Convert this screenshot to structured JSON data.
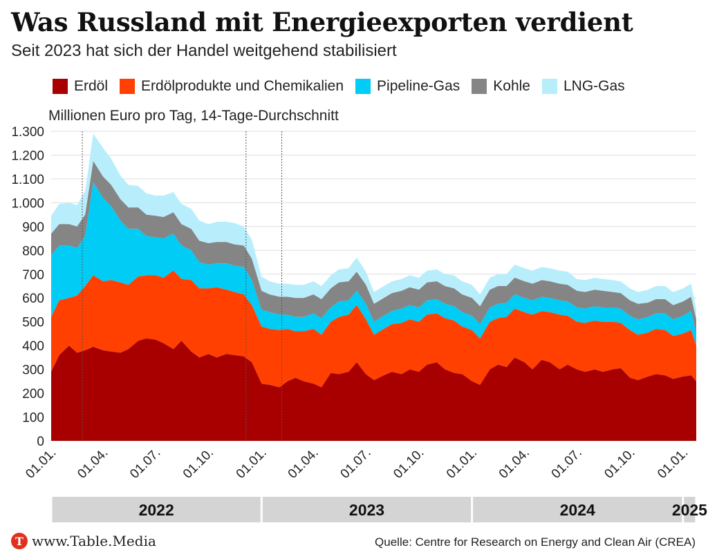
{
  "title": "Was Russland mit Energieexporten verdient",
  "subtitle": "Seit 2023 hat sich der Handel weitgehend stabilisiert",
  "unit_label": "Millionen Euro pro Tag, 14-Tage-Durchschnitt",
  "brand": "www.Table.Media",
  "brand_logo_letter": "T",
  "source": "Quelle: Centre for Research on Energy and Clean Air (CREA)",
  "colors": {
    "erdoel": "#a80000",
    "produkte": "#ff4000",
    "pipeline": "#00ccf5",
    "kohle": "#858585",
    "lng": "#b8eefc",
    "year_band": "#d4d4d4",
    "grid": "#dddddd"
  },
  "chart_data": {
    "type": "area",
    "stacked": true,
    "ylim": [
      0,
      1300
    ],
    "yticks": [
      0,
      100,
      200,
      300,
      400,
      500,
      600,
      700,
      800,
      900,
      1000,
      1100,
      1200,
      1300
    ],
    "ytick_labels": [
      "0",
      "100",
      "200",
      "300",
      "400",
      "500",
      "600",
      "700",
      "800",
      "900",
      "1.000",
      "1.100",
      "1.200",
      "1.300"
    ],
    "xlim": [
      "2022-01-01",
      "2025-01-24"
    ],
    "xticks": [
      "2022-01-01",
      "2022-04-01",
      "2022-07-01",
      "2022-10-01",
      "2023-01-01",
      "2023-04-01",
      "2023-07-01",
      "2023-10-01",
      "2024-01-01",
      "2024-04-01",
      "2024-07-01",
      "2024-10-01",
      "2025-01-01"
    ],
    "xtick_labels": [
      "01.01.",
      "01.04.",
      "01.07.",
      "01.10.",
      "01.01.",
      "01.04.",
      "01.07.",
      "01.10.",
      "01.01.",
      "01.04.",
      "01.07.",
      "01.10.",
      "01.01."
    ],
    "years": [
      {
        "label": "2022",
        "start": "2022-01-01",
        "end": "2022-12-31"
      },
      {
        "label": "2023",
        "start": "2023-01-01",
        "end": "2023-12-31"
      },
      {
        "label": "2024",
        "start": "2024-01-01",
        "end": "2024-12-31"
      },
      {
        "label": "2025",
        "start": "2025-01-01",
        "end": "2025-01-24"
      }
    ],
    "vlines": [
      "2022-02-24",
      "2022-12-05",
      "2023-02-05"
    ],
    "x": [
      "2022-01-01",
      "2022-01-15",
      "2022-02-01",
      "2022-02-15",
      "2022-03-01",
      "2022-03-15",
      "2022-04-01",
      "2022-04-15",
      "2022-05-01",
      "2022-05-15",
      "2022-06-01",
      "2022-06-15",
      "2022-07-01",
      "2022-07-15",
      "2022-08-01",
      "2022-08-15",
      "2022-09-01",
      "2022-09-15",
      "2022-10-01",
      "2022-10-15",
      "2022-11-01",
      "2022-11-15",
      "2022-12-01",
      "2022-12-15",
      "2023-01-01",
      "2023-01-15",
      "2023-02-01",
      "2023-02-15",
      "2023-03-01",
      "2023-03-15",
      "2023-04-01",
      "2023-04-15",
      "2023-05-01",
      "2023-05-15",
      "2023-06-01",
      "2023-06-15",
      "2023-07-01",
      "2023-07-15",
      "2023-08-01",
      "2023-08-15",
      "2023-09-01",
      "2023-09-15",
      "2023-10-01",
      "2023-10-15",
      "2023-11-01",
      "2023-11-15",
      "2023-12-01",
      "2023-12-15",
      "2024-01-01",
      "2024-01-15",
      "2024-02-01",
      "2024-02-15",
      "2024-03-01",
      "2024-03-15",
      "2024-04-01",
      "2024-04-15",
      "2024-05-01",
      "2024-05-15",
      "2024-06-01",
      "2024-06-15",
      "2024-07-01",
      "2024-07-15",
      "2024-08-01",
      "2024-08-15",
      "2024-09-01",
      "2024-09-15",
      "2024-10-01",
      "2024-10-15",
      "2024-11-01",
      "2024-11-15",
      "2024-12-01",
      "2024-12-15",
      "2025-01-01",
      "2025-01-15",
      "2025-01-24"
    ],
    "series": [
      {
        "name": "Erdöl",
        "color_key": "erdoel",
        "values": [
          290,
          360,
          400,
          370,
          380,
          395,
          380,
          375,
          370,
          385,
          420,
          430,
          425,
          410,
          385,
          420,
          375,
          350,
          365,
          350,
          365,
          360,
          355,
          330,
          240,
          235,
          225,
          250,
          265,
          250,
          240,
          225,
          285,
          280,
          290,
          330,
          280,
          255,
          275,
          290,
          280,
          300,
          290,
          320,
          330,
          300,
          285,
          280,
          250,
          235,
          300,
          320,
          310,
          350,
          330,
          300,
          340,
          330,
          300,
          320,
          300,
          290,
          300,
          290,
          300,
          305,
          265,
          255,
          270,
          280,
          275,
          260,
          270,
          275,
          250
        ]
      },
      {
        "name": "Erdölprodukte und Chemikalien",
        "color_key": "produkte",
        "values": [
          230,
          230,
          200,
          240,
          270,
          300,
          290,
          300,
          295,
          270,
          270,
          265,
          270,
          275,
          330,
          260,
          300,
          290,
          275,
          295,
          270,
          265,
          260,
          240,
          240,
          235,
          240,
          220,
          195,
          210,
          230,
          220,
          215,
          240,
          240,
          240,
          230,
          190,
          195,
          200,
          215,
          210,
          210,
          210,
          205,
          215,
          220,
          200,
          215,
          195,
          200,
          195,
          210,
          205,
          210,
          230,
          205,
          210,
          230,
          205,
          200,
          205,
          205,
          210,
          200,
          190,
          200,
          190,
          185,
          190,
          190,
          180,
          180,
          190,
          150
        ]
      },
      {
        "name": "Pipeline-Gas",
        "color_key": "pipeline",
        "values": [
          260,
          230,
          220,
          200,
          210,
          390,
          350,
          310,
          260,
          235,
          200,
          165,
          160,
          165,
          155,
          140,
          125,
          110,
          100,
          100,
          110,
          110,
          115,
          105,
          70,
          70,
          65,
          60,
          60,
          60,
          65,
          70,
          60,
          65,
          60,
          60,
          65,
          55,
          55,
          55,
          60,
          60,
          60,
          60,
          60,
          60,
          60,
          60,
          60,
          60,
          60,
          60,
          60,
          60,
          60,
          60,
          60,
          60,
          60,
          60,
          60,
          60,
          60,
          60,
          60,
          60,
          60,
          65,
          65,
          65,
          70,
          70,
          75,
          80,
          50
        ]
      },
      {
        "name": "Kohle",
        "color_key": "kohle",
        "values": [
          90,
          90,
          90,
          90,
          90,
          90,
          90,
          90,
          90,
          90,
          90,
          90,
          90,
          90,
          90,
          90,
          90,
          90,
          90,
          90,
          90,
          90,
          90,
          90,
          80,
          75,
          75,
          75,
          80,
          80,
          80,
          80,
          80,
          80,
          80,
          80,
          80,
          75,
          75,
          75,
          75,
          75,
          75,
          75,
          75,
          75,
          75,
          75,
          75,
          75,
          75,
          75,
          70,
          70,
          70,
          70,
          70,
          70,
          70,
          70,
          70,
          70,
          70,
          70,
          65,
          65,
          65,
          65,
          60,
          60,
          60,
          60,
          60,
          60,
          60
        ]
      },
      {
        "name": "LNG-Gas",
        "color_key": "lng",
        "values": [
          75,
          85,
          90,
          90,
          100,
          115,
          120,
          110,
          100,
          95,
          90,
          90,
          85,
          90,
          85,
          85,
          85,
          85,
          80,
          85,
          85,
          90,
          80,
          80,
          60,
          55,
          55,
          55,
          55,
          55,
          55,
          55,
          55,
          55,
          55,
          60,
          55,
          50,
          50,
          50,
          50,
          50,
          50,
          50,
          50,
          50,
          55,
          55,
          55,
          50,
          50,
          50,
          50,
          55,
          55,
          55,
          55,
          55,
          55,
          55,
          50,
          50,
          50,
          50,
          50,
          50,
          50,
          50,
          55,
          55,
          55,
          55,
          55,
          55,
          45
        ]
      }
    ]
  }
}
